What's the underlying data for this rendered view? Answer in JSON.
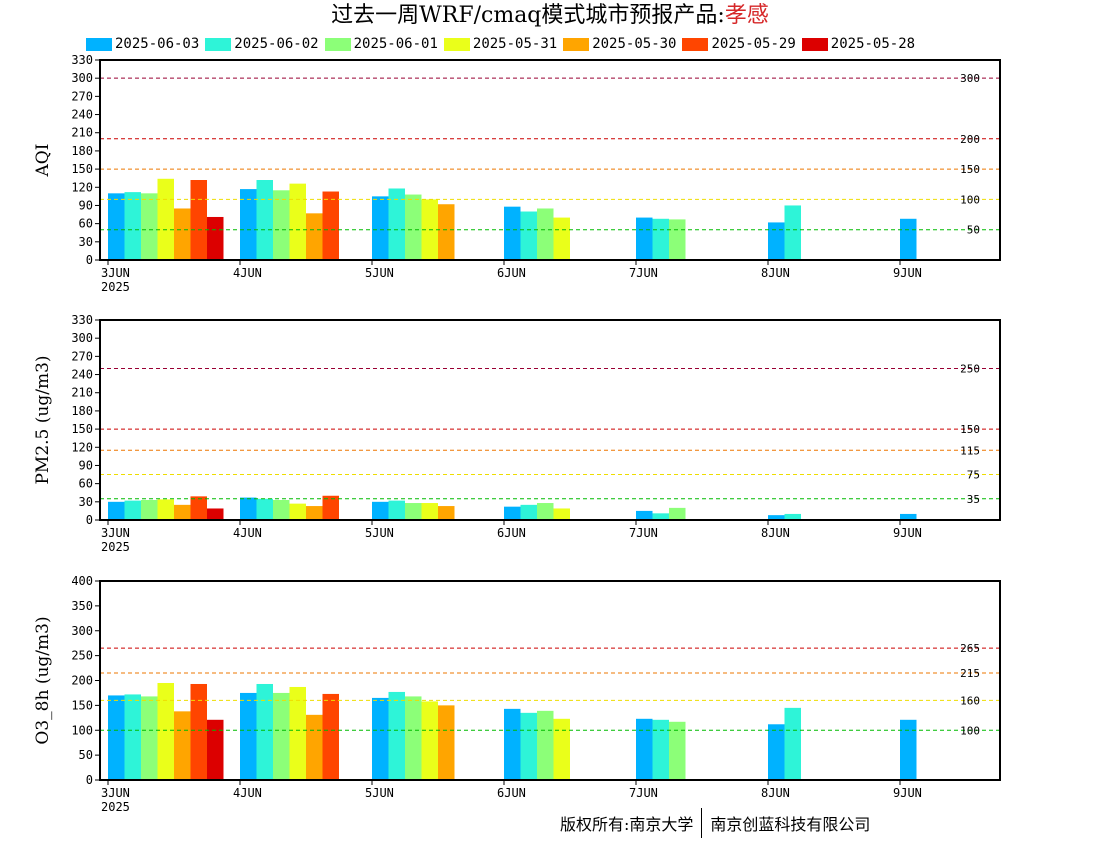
{
  "header": {
    "title_prefix": "过去一周WRF/cmaq模式城市预报产品:",
    "city": "孝感"
  },
  "legend": [
    {
      "label": "2025-06-03",
      "color": "#00b2ff"
    },
    {
      "label": "2025-06-02",
      "color": "#2ef4d8"
    },
    {
      "label": "2025-06-01",
      "color": "#8cff78"
    },
    {
      "label": "2025-05-31",
      "color": "#eaff1a"
    },
    {
      "label": "2025-05-30",
      "color": "#ffa500"
    },
    {
      "label": "2025-05-29",
      "color": "#ff4500"
    },
    {
      "label": "2025-05-28",
      "color": "#dc0000"
    }
  ],
  "footer": {
    "left": "版权所有:南京大学",
    "right": "南京创蓝科技有限公司"
  },
  "chart_data": [
    {
      "type": "bar",
      "ylabel": "AQI",
      "ylim": [
        0,
        330
      ],
      "yticks": [
        0,
        30,
        60,
        90,
        120,
        150,
        180,
        210,
        240,
        270,
        300,
        330
      ],
      "categories": [
        "3JUN",
        "4JUN",
        "5JUN",
        "6JUN",
        "7JUN",
        "8JUN",
        "9JUN"
      ],
      "first_category_sublabel": "2025",
      "grid": false,
      "legend_placement": "top",
      "thresholds": [
        {
          "value": 300,
          "label": "300",
          "color": "#990033"
        },
        {
          "value": 200,
          "label": "200",
          "color": "#cc0000"
        },
        {
          "value": 150,
          "label": "150",
          "color": "#ee7700"
        },
        {
          "value": 100,
          "label": "100",
          "color": "#eedd00"
        },
        {
          "value": 50,
          "label": "50",
          "color": "#00bb00"
        }
      ],
      "series": [
        {
          "name": "2025-06-03",
          "values": [
            110,
            117,
            105,
            88,
            70,
            62,
            68
          ]
        },
        {
          "name": "2025-06-02",
          "values": [
            112,
            132,
            118,
            80,
            68,
            90,
            null
          ]
        },
        {
          "name": "2025-06-01",
          "values": [
            110,
            115,
            108,
            85,
            67,
            null,
            null
          ]
        },
        {
          "name": "2025-05-31",
          "values": [
            134,
            126,
            100,
            70,
            null,
            null,
            null
          ]
        },
        {
          "name": "2025-05-30",
          "values": [
            85,
            77,
            92,
            null,
            null,
            null,
            null
          ]
        },
        {
          "name": "2025-05-29",
          "values": [
            132,
            113,
            null,
            null,
            null,
            null,
            null
          ]
        },
        {
          "name": "2025-05-28",
          "values": [
            71,
            null,
            null,
            null,
            null,
            null,
            null
          ]
        }
      ]
    },
    {
      "type": "bar",
      "ylabel": "PM2.5 (ug/m3)",
      "ylim": [
        0,
        330
      ],
      "yticks": [
        0,
        30,
        60,
        90,
        120,
        150,
        180,
        210,
        240,
        270,
        300,
        330
      ],
      "categories": [
        "3JUN",
        "4JUN",
        "5JUN",
        "6JUN",
        "7JUN",
        "8JUN",
        "9JUN"
      ],
      "first_category_sublabel": "2025",
      "grid": false,
      "thresholds": [
        {
          "value": 250,
          "label": "250",
          "color": "#990033"
        },
        {
          "value": 150,
          "label": "150",
          "color": "#cc0000"
        },
        {
          "value": 115,
          "label": "115",
          "color": "#ee7700"
        },
        {
          "value": 75,
          "label": "75",
          "color": "#eedd00"
        },
        {
          "value": 35,
          "label": "35",
          "color": "#00bb00"
        }
      ],
      "series": [
        {
          "name": "2025-06-03",
          "values": [
            30,
            37,
            30,
            22,
            15,
            8,
            10
          ]
        },
        {
          "name": "2025-06-02",
          "values": [
            32,
            35,
            32,
            25,
            11,
            10,
            null
          ]
        },
        {
          "name": "2025-06-01",
          "values": [
            33,
            33,
            28,
            28,
            20,
            null,
            null
          ]
        },
        {
          "name": "2025-05-31",
          "values": [
            34,
            27,
            28,
            19,
            null,
            null,
            null
          ]
        },
        {
          "name": "2025-05-30",
          "values": [
            25,
            23,
            23,
            null,
            null,
            null,
            null
          ]
        },
        {
          "name": "2025-05-29",
          "values": [
            39,
            40,
            null,
            null,
            null,
            null,
            null
          ]
        },
        {
          "name": "2025-05-28",
          "values": [
            19,
            null,
            null,
            null,
            null,
            null,
            null
          ]
        }
      ]
    },
    {
      "type": "bar",
      "ylabel": "O3_8h (ug/m3)",
      "ylim": [
        0,
        400
      ],
      "yticks": [
        0,
        50,
        100,
        150,
        200,
        250,
        300,
        350,
        400
      ],
      "categories": [
        "3JUN",
        "4JUN",
        "5JUN",
        "6JUN",
        "7JUN",
        "8JUN",
        "9JUN"
      ],
      "first_category_sublabel": "2025",
      "grid": false,
      "thresholds": [
        {
          "value": 265,
          "label": "265",
          "color": "#cc0000"
        },
        {
          "value": 215,
          "label": "215",
          "color": "#ee7700"
        },
        {
          "value": 160,
          "label": "160",
          "color": "#eedd00"
        },
        {
          "value": 100,
          "label": "100",
          "color": "#00bb00"
        }
      ],
      "series": [
        {
          "name": "2025-06-03",
          "values": [
            170,
            175,
            165,
            143,
            123,
            112,
            121
          ]
        },
        {
          "name": "2025-06-02",
          "values": [
            172,
            193,
            177,
            135,
            121,
            145,
            null
          ]
        },
        {
          "name": "2025-06-01",
          "values": [
            168,
            175,
            168,
            139,
            117,
            null,
            null
          ]
        },
        {
          "name": "2025-05-31",
          "values": [
            195,
            187,
            158,
            123,
            null,
            null,
            null
          ]
        },
        {
          "name": "2025-05-30",
          "values": [
            138,
            131,
            150,
            null,
            null,
            null,
            null
          ]
        },
        {
          "name": "2025-05-29",
          "values": [
            193,
            173,
            null,
            null,
            null,
            null,
            null
          ]
        },
        {
          "name": "2025-05-28",
          "values": [
            121,
            null,
            null,
            null,
            null,
            null,
            null
          ]
        }
      ]
    }
  ]
}
